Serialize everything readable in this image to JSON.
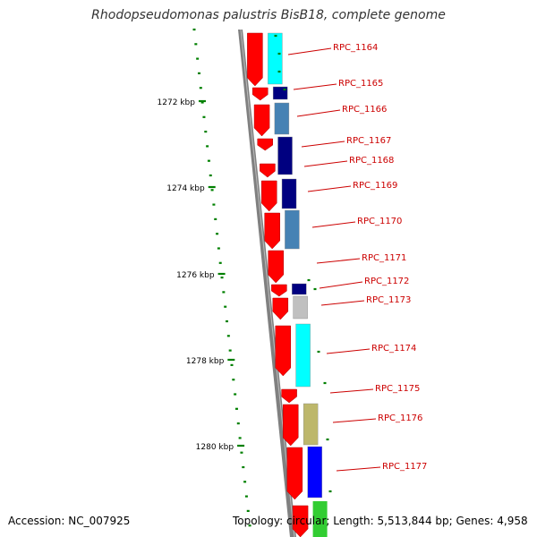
{
  "title": "Rhodopseudomonas palustris BisB18, complete genome",
  "accession": "Accession: NC_007925",
  "summary": "Topology: circular; Length: 5,513,844 bp; Genes: 4,958",
  "colors": {
    "backbone": "#808080",
    "ruler": "#008000",
    "label": "#cc0000",
    "gene": "#ff0000"
  },
  "ruler_labels": [
    "1272 kbp",
    "1274 kbp",
    "1276 kbp",
    "1278 kbp",
    "1280 kbp"
  ],
  "genes": [
    {
      "id": "RPC_1164",
      "color": "#00ffff"
    },
    {
      "id": "RPC_1165",
      "color": "#000080"
    },
    {
      "id": "RPC_1166",
      "color": "#4682b4"
    },
    {
      "id": "RPC_1167",
      "color": "#000080"
    },
    {
      "id": "RPC_1168",
      "color": "#000080"
    },
    {
      "id": "RPC_1169",
      "color": "#000080"
    },
    {
      "id": "RPC_1170",
      "color": "#4682b4"
    },
    {
      "id": "RPC_1171",
      "color": ""
    },
    {
      "id": "RPC_1172",
      "color": "#000080"
    },
    {
      "id": "RPC_1173",
      "color": "#c0c0c0"
    },
    {
      "id": "RPC_1174",
      "color": "#00ffff"
    },
    {
      "id": "RPC_1175",
      "color": ""
    },
    {
      "id": "RPC_1176",
      "color": "#bdb76b"
    },
    {
      "id": "RPC_1177",
      "color": "#0000ff"
    }
  ]
}
